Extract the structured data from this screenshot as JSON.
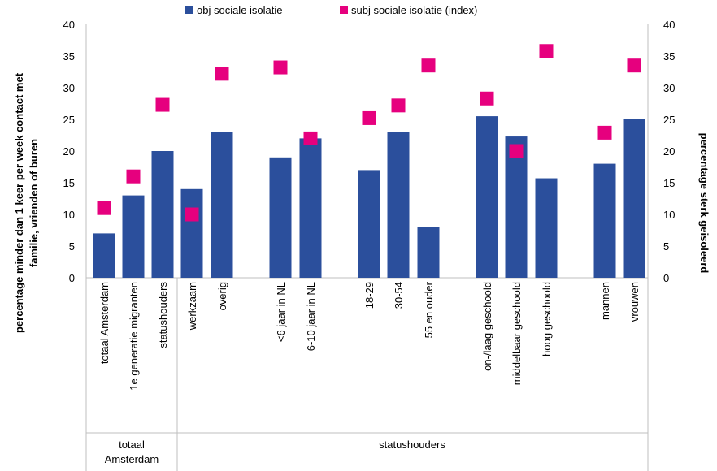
{
  "chart_data": {
    "type": "bar",
    "categories": [
      "totaal Amsterdam",
      "1e generatie migranten",
      "statushouders",
      "werkzaam",
      "overig",
      "<6 jaar in NL",
      "6-10 jaar in NL",
      "18-29",
      "30-54",
      "55 en ouder",
      "on-/laag geschoold",
      "middelbaar geschoold",
      "hoog geschoold",
      "mannen",
      "vrouwen"
    ],
    "series": [
      {
        "name": "obj sociale isolatie",
        "type": "bar",
        "axis": "left",
        "color": "#2b4f9c",
        "values": [
          7,
          13,
          20,
          14,
          23,
          19,
          22,
          17,
          23,
          8,
          25.5,
          22.3,
          15.7,
          18,
          25
        ]
      },
      {
        "name": "subj sociale isolatie (index)",
        "type": "marker",
        "axis": "right",
        "color": "#e6007e",
        "values": [
          11,
          16,
          27.3,
          10,
          32.2,
          33.2,
          22,
          25.2,
          27.2,
          33.5,
          28.3,
          20,
          35.8,
          22.9,
          33.5
        ]
      }
    ],
    "groups": [
      {
        "label": "totaal\nAmsterdam",
        "span": [
          0,
          2
        ]
      },
      {
        "label": "statushouders",
        "span": [
          3,
          14
        ]
      }
    ],
    "ylabel_left": "percentage minder dan 1 keer per week contact met familie, vrienden of buren",
    "ylabel_right": "percentage sterk geisoleerd",
    "ylim_left": [
      0,
      40
    ],
    "ylim_right": [
      0,
      40
    ],
    "yticks_left": [
      "0",
      "5",
      "10",
      "15",
      "20",
      "25",
      "30",
      "35",
      "40"
    ],
    "yticks_right": [
      "0",
      "5",
      "10",
      "15",
      "20",
      "25",
      "30",
      "35",
      "40"
    ],
    "grid": false,
    "legend_position": "top"
  }
}
